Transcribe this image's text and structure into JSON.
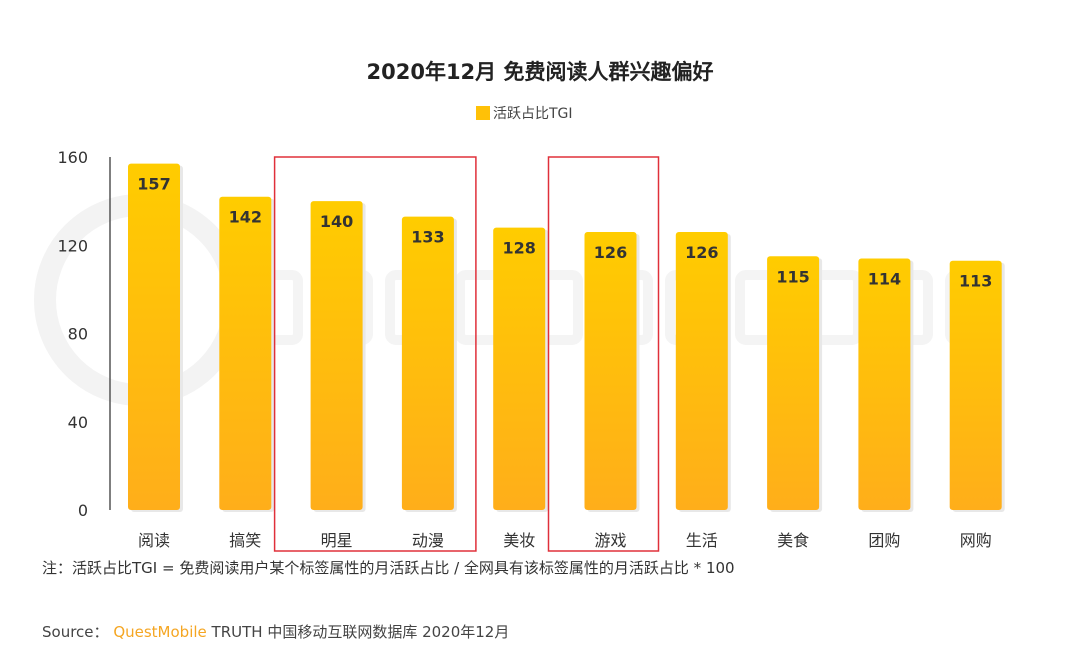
{
  "chart_data": {
    "type": "bar",
    "title": "2020年12月 免费阅读人群兴趣偏好",
    "legend": [
      "活跃占比TGI"
    ],
    "legend_position": "top",
    "categories": [
      "阅读",
      "搞笑",
      "明星",
      "动漫",
      "美妆",
      "游戏",
      "生活",
      "美食",
      "团购",
      "网购"
    ],
    "series": [
      {
        "name": "活跃占比TGI",
        "values": [
          157,
          142,
          140,
          133,
          128,
          126,
          126,
          115,
          114,
          113
        ]
      }
    ],
    "yticks": [
      0,
      40,
      80,
      120,
      160
    ],
    "ylim": [
      0,
      160
    ],
    "grid": false,
    "highlighted_groups": [
      [
        "明星",
        "动漫"
      ],
      [
        "游戏"
      ]
    ],
    "colors": {
      "bar_top": "#ffcc00",
      "bar_bottom": "#ffae1a",
      "highlight_box": "#e0303a"
    }
  },
  "note": "注：活跃占比TGI = 免费阅读用户某个标签属性的月活跃占比 / 全网具有该标签属性的月活跃占比 * 100",
  "source": {
    "label": "Source：",
    "brand": "QuestMobile",
    "rest": "TRUTH 中国移动互联网数据库 2020年12月"
  },
  "watermark": "QUESTMOBILE"
}
